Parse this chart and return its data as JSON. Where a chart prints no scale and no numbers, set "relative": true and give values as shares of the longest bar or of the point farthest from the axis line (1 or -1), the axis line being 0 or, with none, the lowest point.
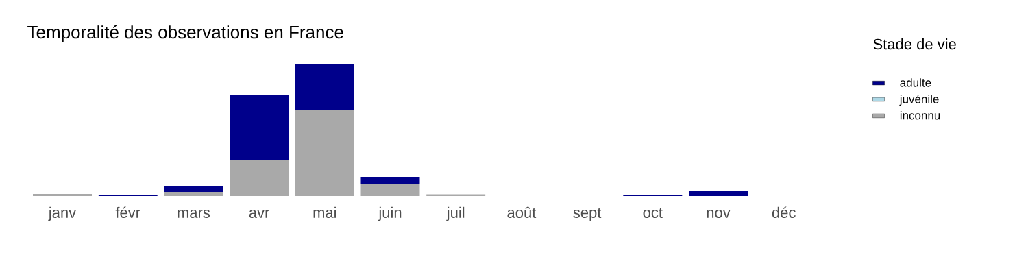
{
  "chart_data": {
    "type": "bar",
    "title": "Temporalité des observations en France",
    "legend_title": "Stade de vie",
    "categories": [
      "janv",
      "févr",
      "mars",
      "avr",
      "mai",
      "juin",
      "juil",
      "août",
      "sept",
      "oct",
      "nov",
      "déc"
    ],
    "stacked": true,
    "relative": true,
    "legend": "right",
    "series": [
      {
        "name": "inconnu",
        "color": "#a9a9a9",
        "values": [
          0.016,
          0,
          0.031,
          0.269,
          0.653,
          0.093,
          0.013,
          0,
          0,
          0,
          0,
          0
        ]
      },
      {
        "name": "juvénile",
        "color": "#add8e6",
        "values": [
          0,
          0,
          0,
          0,
          0,
          0,
          0,
          0,
          0,
          0,
          0,
          0
        ]
      },
      {
        "name": "adulte",
        "color": "#00008b",
        "values": [
          0,
          0.01,
          0.041,
          0.492,
          0.347,
          0.052,
          0,
          0,
          0,
          0.01,
          0.036,
          0
        ]
      }
    ]
  }
}
